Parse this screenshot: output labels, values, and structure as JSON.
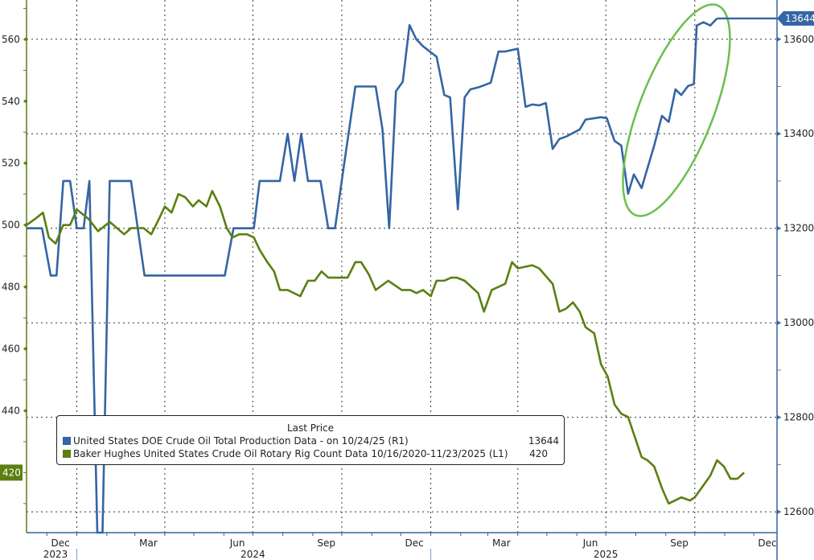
{
  "chart_data": {
    "type": "line",
    "title": "",
    "x_range": [
      "2023-11-10",
      "2025-12-25"
    ],
    "x_month_labels": [
      {
        "date": "2023-12-15",
        "label": "Dec"
      },
      {
        "date": "2024-03-15",
        "label": "Mar"
      },
      {
        "date": "2024-06-15",
        "label": "Jun"
      },
      {
        "date": "2024-09-15",
        "label": "Sep"
      },
      {
        "date": "2024-12-15",
        "label": "Dec"
      },
      {
        "date": "2025-03-15",
        "label": "Mar"
      },
      {
        "date": "2025-06-15",
        "label": "Jun"
      },
      {
        "date": "2025-09-15",
        "label": "Sep"
      },
      {
        "date": "2025-12-15",
        "label": "Dec"
      }
    ],
    "x_year_labels": [
      {
        "date": "2023-12-10",
        "label": "2023"
      },
      {
        "date": "2024-07-01",
        "label": "2024"
      },
      {
        "date": "2025-07-01",
        "label": "2025"
      }
    ],
    "year_separators": [
      "2024-01-01",
      "2025-01-01"
    ],
    "vertical_grid": [
      "2024-01-01",
      "2024-04-01",
      "2024-07-01",
      "2024-10-01",
      "2025-01-01",
      "2025-04-01",
      "2025-07-01",
      "2025-10-01"
    ],
    "grid": true,
    "left_axis": {
      "range": [
        400.6,
        572.7
      ],
      "ticks": [
        440,
        460,
        480,
        500,
        520,
        540,
        560
      ],
      "minor_step": 10,
      "color": "#5b7f12"
    },
    "right_axis": {
      "range": [
        12556,
        13683
      ],
      "ticks": [
        12600,
        12800,
        13000,
        13200,
        13400,
        13600
      ],
      "minor_step": 100,
      "color": "#3465a4"
    },
    "legend": {
      "title": "Last Price",
      "placement": "bottom-left",
      "entries": [
        {
          "label": "United States DOE Crude Oil Total Production Data -  on 10/24/25  (R1)",
          "value": "13644"
        },
        {
          "label": "Baker Hughes United States Crude Oil Rotary Rig Count Data 10/16/2020-11/23/2025   (L1)",
          "value": "420"
        }
      ]
    },
    "series": [
      {
        "name": "United States DOE Crude Oil Total Production Data",
        "axis": "right",
        "color": "#3465a4",
        "last_value": "13644",
        "points": [
          [
            "2023-11-10",
            13200
          ],
          [
            "2023-11-26",
            13200
          ],
          [
            "2023-12-05",
            13100
          ],
          [
            "2023-12-11",
            13100
          ],
          [
            "2023-12-18",
            13300
          ],
          [
            "2023-12-25",
            13300
          ],
          [
            "2024-01-01",
            13200
          ],
          [
            "2024-01-08",
            13200
          ],
          [
            "2024-01-14",
            13300
          ],
          [
            "2024-01-25",
            12300
          ],
          [
            "2024-02-04",
            13300
          ],
          [
            "2024-02-26",
            13300
          ],
          [
            "2024-03-11",
            13100
          ],
          [
            "2024-06-02",
            13100
          ],
          [
            "2024-06-11",
            13200
          ],
          [
            "2024-07-02",
            13200
          ],
          [
            "2024-07-08",
            13300
          ],
          [
            "2024-07-29",
            13300
          ],
          [
            "2024-08-06",
            13400
          ],
          [
            "2024-08-13",
            13300
          ],
          [
            "2024-08-20",
            13400
          ],
          [
            "2024-08-27",
            13300
          ],
          [
            "2024-09-09",
            13300
          ],
          [
            "2024-09-17",
            13200
          ],
          [
            "2024-09-24",
            13200
          ],
          [
            "2024-10-03",
            13330
          ],
          [
            "2024-10-15",
            13500
          ],
          [
            "2024-11-05",
            13500
          ],
          [
            "2024-11-12",
            13410
          ],
          [
            "2024-11-19",
            13200
          ],
          [
            "2024-11-26",
            13490
          ],
          [
            "2024-12-03",
            13510
          ],
          [
            "2024-12-10",
            13630
          ],
          [
            "2024-12-17",
            13600
          ],
          [
            "2024-12-24",
            13585
          ],
          [
            "2025-01-07",
            13563
          ],
          [
            "2025-01-15",
            13482
          ],
          [
            "2025-01-21",
            13477
          ],
          [
            "2025-01-29",
            13240
          ],
          [
            "2025-02-05",
            13477
          ],
          [
            "2025-02-11",
            13494
          ],
          [
            "2025-02-19",
            13498
          ],
          [
            "2025-03-04",
            13508
          ],
          [
            "2025-03-12",
            13574
          ],
          [
            "2025-03-19",
            13574
          ],
          [
            "2025-04-01",
            13580
          ],
          [
            "2025-04-09",
            13457
          ],
          [
            "2025-04-16",
            13462
          ],
          [
            "2025-04-23",
            13460
          ],
          [
            "2025-04-30",
            13465
          ],
          [
            "2025-05-07",
            13368
          ],
          [
            "2025-05-14",
            13389
          ],
          [
            "2025-05-21",
            13394
          ],
          [
            "2025-06-04",
            13409
          ],
          [
            "2025-06-10",
            13430
          ],
          [
            "2025-06-26",
            13435
          ],
          [
            "2025-07-02",
            13433
          ],
          [
            "2025-07-10",
            13385
          ],
          [
            "2025-07-17",
            13375
          ],
          [
            "2025-07-24",
            13273
          ],
          [
            "2025-07-30",
            13314
          ],
          [
            "2025-08-07",
            13285
          ],
          [
            "2025-08-20",
            13375
          ],
          [
            "2025-08-28",
            13438
          ],
          [
            "2025-09-04",
            13425
          ],
          [
            "2025-09-11",
            13494
          ],
          [
            "2025-09-17",
            13482
          ],
          [
            "2025-09-24",
            13501
          ],
          [
            "2025-09-30",
            13505
          ],
          [
            "2025-10-03",
            13629
          ],
          [
            "2025-10-10",
            13636
          ],
          [
            "2025-10-17",
            13629
          ],
          [
            "2025-10-24",
            13644
          ]
        ]
      },
      {
        "name": "Baker Hughes United States Crude Oil Rotary Rig Count Data",
        "axis": "left",
        "color": "#5b7f12",
        "last_value": "420",
        "points": [
          [
            "2023-11-10",
            500
          ],
          [
            "2023-11-19",
            502
          ],
          [
            "2023-11-27",
            504
          ],
          [
            "2023-12-03",
            496
          ],
          [
            "2023-12-10",
            494
          ],
          [
            "2023-12-18",
            500
          ],
          [
            "2023-12-25",
            500
          ],
          [
            "2024-01-01",
            505
          ],
          [
            "2024-01-13",
            502
          ],
          [
            "2024-01-23",
            498
          ],
          [
            "2024-02-04",
            501
          ],
          [
            "2024-02-19",
            497
          ],
          [
            "2024-02-26",
            499
          ],
          [
            "2024-03-10",
            499
          ],
          [
            "2024-03-18",
            497
          ],
          [
            "2024-03-26",
            502
          ],
          [
            "2024-04-01",
            506
          ],
          [
            "2024-04-08",
            504
          ],
          [
            "2024-04-15",
            510
          ],
          [
            "2024-04-22",
            509
          ],
          [
            "2024-04-30",
            506
          ],
          [
            "2024-05-06",
            508
          ],
          [
            "2024-05-14",
            506
          ],
          [
            "2024-05-20",
            511
          ],
          [
            "2024-05-28",
            506
          ],
          [
            "2024-06-04",
            499
          ],
          [
            "2024-06-10",
            496
          ],
          [
            "2024-06-17",
            497
          ],
          [
            "2024-06-25",
            497
          ],
          [
            "2024-07-02",
            496
          ],
          [
            "2024-07-08",
            492
          ],
          [
            "2024-07-16",
            488
          ],
          [
            "2024-07-23",
            485
          ],
          [
            "2024-07-29",
            479
          ],
          [
            "2024-08-06",
            479
          ],
          [
            "2024-08-19",
            477
          ],
          [
            "2024-08-27",
            482
          ],
          [
            "2024-09-03",
            482
          ],
          [
            "2024-09-10",
            485
          ],
          [
            "2024-09-17",
            483
          ],
          [
            "2024-10-07",
            483
          ],
          [
            "2024-10-15",
            488
          ],
          [
            "2024-10-21",
            488
          ],
          [
            "2024-10-29",
            484
          ],
          [
            "2024-11-05",
            479
          ],
          [
            "2024-11-18",
            482
          ],
          [
            "2024-12-02",
            479
          ],
          [
            "2024-12-11",
            479
          ],
          [
            "2024-12-17",
            478
          ],
          [
            "2024-12-24",
            479
          ],
          [
            "2025-01-01",
            477
          ],
          [
            "2025-01-07",
            482
          ],
          [
            "2025-01-15",
            482
          ],
          [
            "2025-01-22",
            483
          ],
          [
            "2025-01-28",
            483
          ],
          [
            "2025-02-05",
            482
          ],
          [
            "2025-02-19",
            478
          ],
          [
            "2025-02-25",
            472
          ],
          [
            "2025-03-05",
            479
          ],
          [
            "2025-03-19",
            481
          ],
          [
            "2025-03-26",
            488
          ],
          [
            "2025-04-01",
            486
          ],
          [
            "2025-04-16",
            487
          ],
          [
            "2025-04-23",
            486
          ],
          [
            "2025-05-07",
            481
          ],
          [
            "2025-05-14",
            472
          ],
          [
            "2025-05-21",
            473
          ],
          [
            "2025-05-28",
            475
          ],
          [
            "2025-06-04",
            472
          ],
          [
            "2025-06-10",
            467
          ],
          [
            "2025-06-19",
            465
          ],
          [
            "2025-06-26",
            455
          ],
          [
            "2025-07-03",
            451
          ],
          [
            "2025-07-10",
            442
          ],
          [
            "2025-07-17",
            439
          ],
          [
            "2025-07-24",
            438
          ],
          [
            "2025-08-07",
            425
          ],
          [
            "2025-08-13",
            424
          ],
          [
            "2025-08-20",
            422
          ],
          [
            "2025-08-28",
            415
          ],
          [
            "2025-09-04",
            410
          ],
          [
            "2025-09-17",
            412
          ],
          [
            "2025-09-26",
            411
          ],
          [
            "2025-10-01",
            412
          ],
          [
            "2025-10-17",
            419
          ],
          [
            "2025-10-24",
            424
          ],
          [
            "2025-10-31",
            422
          ],
          [
            "2025-11-07",
            418
          ],
          [
            "2025-11-14",
            418
          ],
          [
            "2025-11-21",
            420
          ]
        ]
      }
    ],
    "annotation": {
      "shape": "ellipse",
      "color": "#6abf4b",
      "around": "United States DOE Crude Oil Total Production Data, 2025-07-24 to 2025-10-24"
    }
  }
}
